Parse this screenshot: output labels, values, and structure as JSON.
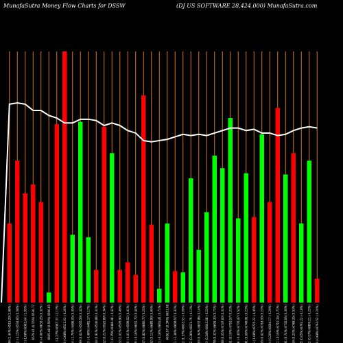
{
  "header": {
    "title_left": "MunafaSutra  Money Flow  Charts for DSSW",
    "title_right": "(DJ US SOFTWARE 28,424.000) MunafaSutra.com"
  },
  "colors": {
    "background": "#000000",
    "bar_up": "#00ff00",
    "bar_down": "#ff0000",
    "grid": "#d2781e",
    "line": "#ffffff",
    "label": "#ffffff"
  },
  "chart_data": {
    "type": "bar",
    "title": "MunafaSutra  Money Flow  Charts for DSSW",
    "subtitle": "(DJ US SOFTWARE 28,424.000) MunafaSutra.com",
    "xlabel": "",
    "ylabel": "",
    "ylim": [
      0,
      100
    ],
    "grid": true,
    "bar_colors": [
      "red",
      "red",
      "red",
      "red",
      "red",
      "green",
      "red",
      "red",
      "green",
      "green",
      "green",
      "red",
      "red",
      "green",
      "red",
      "red",
      "red",
      "red",
      "red",
      "green",
      "green",
      "red",
      "green",
      "green",
      "green",
      "green",
      "green",
      "green",
      "green",
      "green",
      "green",
      "red",
      "green",
      "red",
      "red",
      "green",
      "red",
      "green",
      "green",
      "red"
    ],
    "values": [
      31.5,
      56.5,
      43.5,
      47,
      40,
      4,
      71,
      100,
      27,
      72,
      26,
      13,
      70,
      59.5,
      13,
      16,
      11,
      82.5,
      31,
      5.5,
      31.5,
      12.5,
      12,
      49.5,
      21,
      36,
      58.5,
      53.5,
      73.5,
      33.5,
      51.5,
      34,
      67,
      40,
      77.5,
      51,
      59.5,
      31.5,
      56.5,
      9.5
    ],
    "line_values": [
      79,
      79.5,
      79,
      76.5,
      76.5,
      74.5,
      73.5,
      71.5,
      71.5,
      73,
      73,
      72.5,
      70.5,
      71.5,
      70.5,
      68.5,
      67.5,
      64.5,
      64,
      64.5,
      65,
      66,
      67,
      66.5,
      67,
      66.5,
      67.5,
      68.5,
      69.5,
      69.5,
      68.5,
      69,
      67.5,
      67.5,
      66.5,
      67,
      68.5,
      69.5,
      70,
      69.5
    ],
    "line_start": 2,
    "x": [
      "6553.44 (1.44%) 6515.29 (1.86%)",
      "6423.92 (-2.15%) 6534.65 (0.58%)",
      "6513.92 (-1.08%) 6583.64 (-1.95%)",
      "6579.41 (0.15%) 6536.77",
      "6580.08 (-0.06%) 6633.25 (0.32%)",
      "6605.48 (0.59%) 6596.65",
      "6547.31 (-1.27%) 6587.33 (-1.13%)",
      "6502.88 (-0.68%) 6511.03 (-0.26%)",
      "6423.34 (-1.79%) 6496.05 (0.45%)",
      "6463.89 (0.62%) 6505.59 (0.32%)",
      "6432.73 (-0.48%) 6481.17 (0.17%)",
      "6491.14 (0.91%) 6540.86 (0.31%)",
      "6504.12 (0.21%) 6522.89 (0.34%)",
      "6513.61 (0.15%) 6486.48 (-0.42%)",
      "6579.22 (1.01%) 6576.90 (0.49%)",
      "6576.30 (-0.01%) 6599.52 (0.41%)",
      "6565.69 (-0.16%) 6631.72 (0.44%)",
      "6619.57 (0.82%) 6660.77 (0.25%)",
      "6626.62 (0.11%) 6685.99 (0.60%)",
      "6614.51 (-0.18%) 6603.41 (0.71%)",
      "6636.97 (0.34%) 6651.98",
      "6545.21 (-1.38%) 6608.57 (0.32%)",
      "6621.82 (1.17%) 6633.53 (-0.09%)",
      "6638.72 (0.26%) 6631.75 (-0.13%)",
      "6661.33 (0.34%) 6637.86 (0.14%)",
      "6677.43 (0.24%) 6643.08 (-0.23%)",
      "6698.78 (0.32%) 6693.33 (0.71%)",
      "6701.88 (0.05%) 6737.63 (0.31%)",
      "6714.51 (0.19%) 6753.57 (0.23%)",
      "6687.46 (-0.40%) 6776.47 (0.52%)",
      "6733.41 (0.69%) 6749.91 (0.23%)",
      "6660.45 (-1.08%) 6725.22 (-0.45%)",
      "6701.55 (0.62%) 6718.55 (0.23%)",
      "6688.33 (-0.20%) 6694.17 (-0.29%)",
      "6675.41 (-0.19%) 6710.34 (0.71%)",
      "6724.91 (0.74%) 6732.06 (0.30%)",
      "6740.14 (0.23%) 6768.25 (0.53%)",
      "6743.25 (0.05%) 6792.22 (-0.18%)",
      "6781.62 (0.57%) 6809.21 (-0.25%)",
      "6735.38 (-0.68%) 6793.52 (-0.24%)"
    ]
  }
}
